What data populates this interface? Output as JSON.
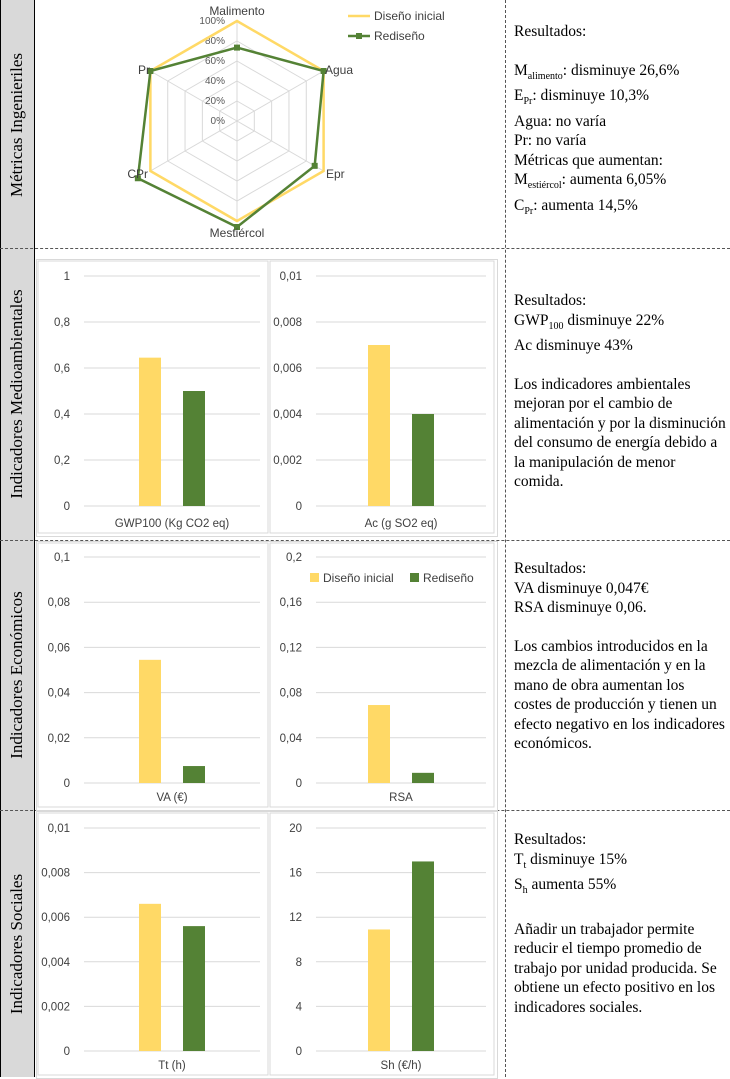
{
  "colors": {
    "initial": "#ffd966",
    "redesign": "#548235",
    "grid": "#d9d9d9",
    "label_bg": "#d9d9d9"
  },
  "rows": [
    {
      "label": "Métricas Ingenieriles"
    },
    {
      "label": "Indicadores Medioambientales"
    },
    {
      "label": "Indicadores Económicos"
    },
    {
      "label": "Indicadores Sociales"
    }
  ],
  "notes": {
    "engineering": {
      "heading": "Resultados:",
      "m_main": "M",
      "m_sub": "alimento",
      "m_rest": ": disminuye 26,6%",
      "e_main": "E",
      "e_sub": "Pr",
      "e_rest": ": disminuye 10,3%",
      "agua": "Agua: no varía",
      "pr": "Pr: no varía",
      "increase_heading": "Métricas que aumentan:",
      "mest_main": "M",
      "mest_sub": "estiércol",
      "mest_rest": ": aumenta 6,05%",
      "c_main": "C",
      "c_sub": "Pr",
      "c_rest": ": aumenta 14,5%"
    },
    "environmental": {
      "heading": "Resultados:",
      "gwp_main": "GWP",
      "gwp_sub": "100",
      "gwp_rest": " disminuye 22%",
      "ac": "Ac disminuye 43%",
      "body": "Los indicadores ambientales mejoran por el cambio de alimentación y por la disminución del consumo de energía debido a la manipulación de menor comida."
    },
    "economic": {
      "heading": "Resultados:",
      "va": "VA disminuye 0,047€",
      "rsa": "RSA disminuye 0,06.",
      "body": "Los cambios introducidos en la mezcla de alimentación y en la mano de obra aumentan los costes de producción y tienen un efecto negativo en los indicadores económicos."
    },
    "social": {
      "heading": "Resultados:",
      "tt_main": "T",
      "tt_sub": "t",
      "tt_rest": " disminuye 15%",
      "sh_main": "S",
      "sh_sub": "h",
      "sh_rest": " aumenta 55%",
      "body": "Añadir un trabajador permite reducir el tiempo promedio de trabajo por unidad producida. Se obtiene un efecto positivo en los indicadores sociales."
    }
  },
  "chart_data": [
    {
      "type": "radar",
      "axes": [
        "Malimento",
        "Agua",
        "Epr",
        "Mestiércol",
        "CPr",
        "Pr"
      ],
      "ticks": [
        "0%",
        "20%",
        "40%",
        "60%",
        "80%",
        "100%"
      ],
      "ylim": [
        0,
        1
      ],
      "legend": "top-right",
      "series": [
        {
          "name": "Diseño inicial",
          "values": [
            1.0,
            1.0,
            1.0,
            1.0,
            1.0,
            1.0
          ]
        },
        {
          "name": "Rediseño",
          "values": [
            0.734,
            1.0,
            0.897,
            1.06,
            1.145,
            1.0
          ]
        }
      ]
    },
    {
      "type": "bar",
      "categories": [
        "GWP100 (Kg CO2 eq)"
      ],
      "ticks": [
        "0",
        "0,2",
        "0,4",
        "0,6",
        "0,8",
        "1"
      ],
      "ylim": [
        0,
        1
      ],
      "series": [
        {
          "values": [
            0.645
          ]
        },
        {
          "values": [
            0.5
          ]
        }
      ]
    },
    {
      "type": "bar",
      "categories": [
        "Ac (g SO2 eq)"
      ],
      "ticks": [
        "0",
        "0,002",
        "0,004",
        "0,006",
        "0,008",
        "0,01"
      ],
      "ylim": [
        0,
        0.01
      ],
      "series": [
        {
          "values": [
            0.007
          ]
        },
        {
          "values": [
            0.004
          ]
        }
      ]
    },
    {
      "type": "bar",
      "categories": [
        "VA (€)"
      ],
      "ticks": [
        "0",
        "0,02",
        "0,04",
        "0,06",
        "0,08",
        "0,1"
      ],
      "ylim": [
        0,
        0.1
      ],
      "series": [
        {
          "values": [
            0.0545
          ]
        },
        {
          "values": [
            0.0075
          ]
        }
      ]
    },
    {
      "type": "bar",
      "categories": [
        "RSA"
      ],
      "ticks": [
        "0",
        "0,04",
        "0,08",
        "0,12",
        "0,16",
        "0,2"
      ],
      "ylim": [
        0,
        0.2
      ],
      "legend": "top",
      "series": [
        {
          "name": "Diseño inicial",
          "values": [
            0.069
          ]
        },
        {
          "name": "Rediseño",
          "values": [
            0.009
          ]
        }
      ]
    },
    {
      "type": "bar",
      "categories": [
        "Tt (h)"
      ],
      "ticks": [
        "0",
        "0,002",
        "0,004",
        "0,006",
        "0,008",
        "0,01"
      ],
      "ylim": [
        0,
        0.01
      ],
      "series": [
        {
          "values": [
            0.0066
          ]
        },
        {
          "values": [
            0.0056
          ]
        }
      ]
    },
    {
      "type": "bar",
      "categories": [
        "Sh (€/h)"
      ],
      "ticks": [
        "0",
        "4",
        "8",
        "12",
        "16",
        "20"
      ],
      "ylim": [
        0,
        20
      ],
      "series": [
        {
          "values": [
            10.9
          ]
        },
        {
          "values": [
            17.0
          ]
        }
      ]
    }
  ]
}
